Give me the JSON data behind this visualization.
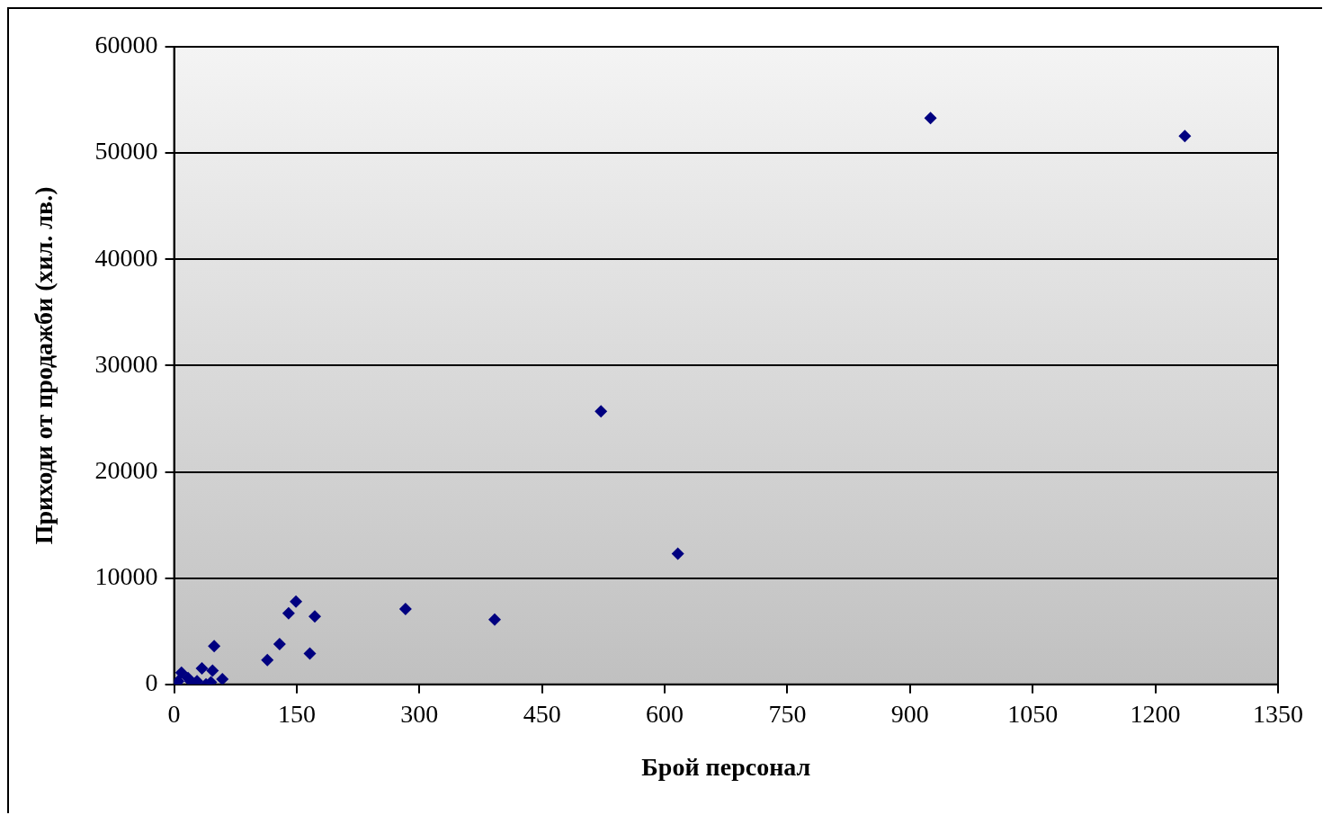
{
  "chart_data": {
    "type": "scatter",
    "xlabel": "Брой персонал",
    "ylabel": "Приходи от продажби (хил. лв.)",
    "x": [
      925,
      1236,
      522,
      616,
      149,
      140,
      172,
      283,
      392,
      129,
      114,
      166,
      49,
      3,
      5,
      9,
      17,
      20,
      28,
      34,
      39,
      47,
      45,
      59
    ],
    "series": [
      {
        "color": "#000080",
        "values": [
          53300,
          51600,
          25700,
          12300,
          7800,
          6700,
          6400,
          7100,
          6100,
          3800,
          2300,
          2900,
          3600,
          0,
          300,
          1100,
          600,
          300,
          300,
          1500,
          0,
          1300,
          200,
          500
        ]
      }
    ],
    "xlim": [
      0,
      1350
    ],
    "xticks": [
      0,
      150,
      300,
      450,
      600,
      750,
      900,
      1050,
      1200,
      1350
    ],
    "ylim": [
      0,
      60000
    ],
    "yticks": [
      0,
      10000,
      20000,
      30000,
      40000,
      50000,
      60000
    ],
    "grid": "y",
    "legend": false,
    "marker": "diamond"
  }
}
